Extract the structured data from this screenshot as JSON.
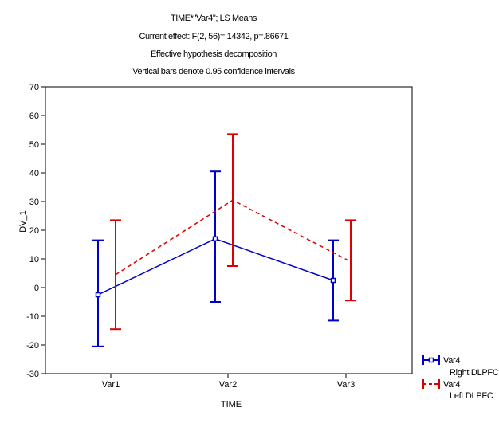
{
  "chart_data": {
    "type": "line",
    "title_lines": [
      "TIME*\"Var4\"; LS Means",
      "Current effect: F(2, 56)=.14342, p=.86671",
      "Effective hypothesis decomposition",
      "Vertical bars denote 0.95 confidence intervals"
    ],
    "xlabel": "TIME",
    "ylabel": "DV_1",
    "categories": [
      "Var1",
      "Var2",
      "Var3"
    ],
    "ylim": [
      -30,
      70
    ],
    "yticks": [
      -30,
      -20,
      -10,
      0,
      10,
      20,
      30,
      40,
      50,
      60,
      70
    ],
    "grid": false,
    "legend_position": "right-bottom",
    "legend_title": "Var4",
    "series": [
      {
        "name": "Right DLPFC",
        "color": "#0000cc",
        "line_style": "solid",
        "means": [
          -2.5,
          17,
          2.5
        ],
        "ci_lower": [
          -20.5,
          -5,
          -11.5
        ],
        "ci_upper": [
          16.5,
          40.5,
          16.5
        ]
      },
      {
        "name": "Left DLPFC",
        "color": "#dd0000",
        "line_style": "dashed",
        "means": [
          4.5,
          30.5,
          9
        ],
        "ci_lower": [
          -14.5,
          7.5,
          -4.5
        ],
        "ci_upper": [
          23.5,
          53.5,
          23.5
        ]
      }
    ]
  }
}
